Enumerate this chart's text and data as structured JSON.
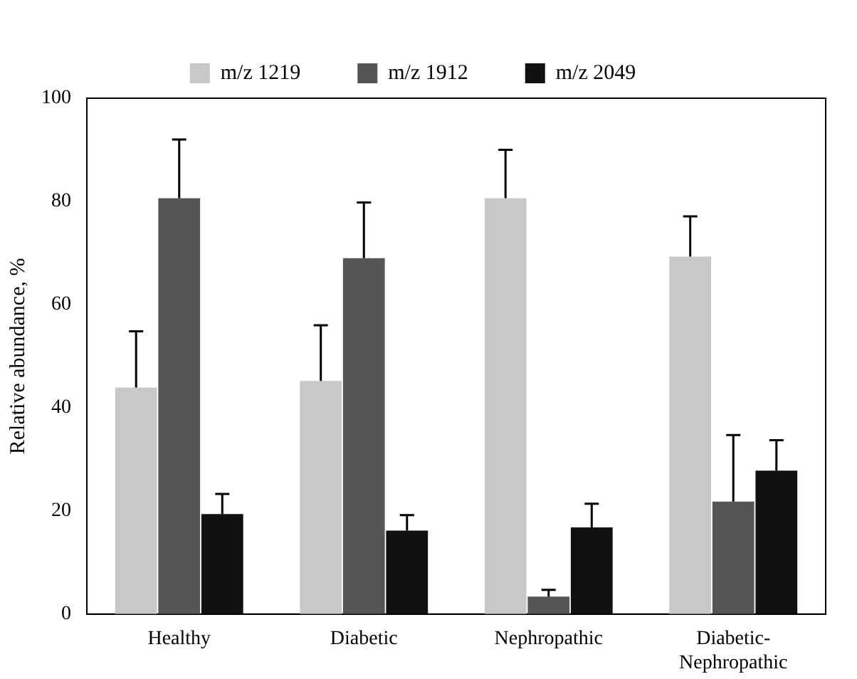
{
  "chart_data": {
    "type": "bar",
    "ylabel": "Relative abundance, %",
    "categories": [
      "Healthy",
      "Diabetic",
      "Nephropathic",
      "Diabetic-\nNephropathic"
    ],
    "series": [
      {
        "name": "m/z 1219",
        "color": "#c8c8c8",
        "values": [
          43.9,
          45.2,
          80.6,
          69.3
        ],
        "errors": [
          [
            43.9,
            54.8
          ],
          [
            45.2,
            56.0
          ],
          [
            80.6,
            90.0
          ],
          [
            69.3,
            77.1
          ]
        ]
      },
      {
        "name": "m/z 1912",
        "color": "#555555",
        "values": [
          80.6,
          69.0,
          3.4,
          21.8
        ],
        "errors": [
          [
            80.6,
            92.0
          ],
          [
            69.0,
            79.8
          ],
          [
            3.4,
            4.7
          ],
          [
            21.8,
            34.7
          ]
        ]
      },
      {
        "name": "m/z 2049",
        "color": "#111111",
        "values": [
          19.4,
          16.2,
          16.8,
          27.8
        ],
        "errors": [
          [
            19.4,
            23.3
          ],
          [
            16.2,
            19.2
          ],
          [
            16.8,
            21.4
          ],
          [
            27.8,
            33.7
          ]
        ]
      }
    ],
    "ylim": [
      0,
      100
    ],
    "yticks": [
      0,
      20,
      40,
      60,
      80,
      100
    ],
    "grid": false,
    "legend": "top"
  }
}
